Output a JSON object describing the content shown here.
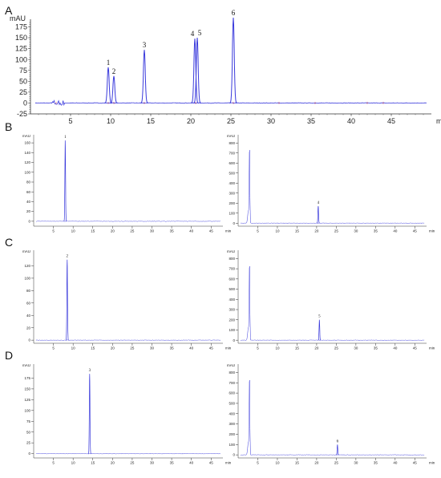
{
  "panel_labels": [
    "A",
    "B",
    "C",
    "D"
  ],
  "colors": {
    "trace": "#3b3bdc",
    "baseline_noise": "#cc3344",
    "axis": "#333333"
  },
  "chart_data": [
    {
      "id": "A",
      "type": "line",
      "ylabel": "mAU",
      "xlabel": "min",
      "xlim": [
        0,
        50
      ],
      "ylim": [
        -25,
        185
      ],
      "xticks": [
        5,
        10,
        15,
        20,
        25,
        30,
        35,
        40,
        45
      ],
      "yticks": [
        -25,
        0,
        25,
        50,
        75,
        100,
        125,
        150,
        175
      ],
      "peaks": [
        {
          "label": "1",
          "x": 9.7,
          "y": 82
        },
        {
          "label": "2",
          "x": 10.4,
          "y": 62
        },
        {
          "label": "3",
          "x": 14.2,
          "y": 122
        },
        {
          "label": "4",
          "x": 20.5,
          "y": 148
        },
        {
          "label": "5",
          "x": 20.8,
          "y": 150
        },
        {
          "label": "6",
          "x": 25.3,
          "y": 196
        }
      ]
    },
    {
      "id": "B-left",
      "type": "line",
      "ylabel": "mAU",
      "xlabel": "min",
      "xlim": [
        0,
        48
      ],
      "ylim": [
        -10,
        170
      ],
      "xticks": [
        5,
        10,
        15,
        20,
        25,
        30,
        35,
        40,
        45
      ],
      "yticks": [
        0,
        20,
        40,
        60,
        80,
        100,
        120,
        140,
        160
      ],
      "peaks": [
        {
          "label": "1",
          "x": 8.0,
          "y": 165
        }
      ]
    },
    {
      "id": "B-right",
      "type": "line",
      "ylabel": "mAU",
      "xlabel": "min",
      "xlim": [
        0,
        48
      ],
      "ylim": [
        -30,
        850
      ],
      "xticks": [
        5,
        10,
        15,
        20,
        25,
        30,
        35,
        40,
        45
      ],
      "yticks": [
        0,
        100,
        200,
        300,
        400,
        500,
        600,
        700,
        800
      ],
      "peaks": [
        {
          "label": "4",
          "x": 20.4,
          "y": 170
        }
      ]
    },
    {
      "id": "C-left",
      "type": "line",
      "ylabel": "mAU",
      "xlabel": "min",
      "xlim": [
        0,
        48
      ],
      "ylim": [
        -5,
        140
      ],
      "xticks": [
        5,
        10,
        15,
        20,
        25,
        30,
        35,
        40,
        45
      ],
      "yticks": [
        0,
        20,
        40,
        60,
        80,
        100,
        120
      ],
      "peaks": [
        {
          "label": "2",
          "x": 8.5,
          "y": 130
        }
      ]
    },
    {
      "id": "C-right",
      "type": "line",
      "ylabel": "mAU",
      "xlabel": "min",
      "xlim": [
        0,
        48
      ],
      "ylim": [
        -30,
        850
      ],
      "xticks": [
        5,
        10,
        15,
        20,
        25,
        30,
        35,
        40,
        45
      ],
      "yticks": [
        0,
        100,
        200,
        300,
        400,
        500,
        600,
        700,
        800
      ],
      "peaks": [
        {
          "label": "5",
          "x": 20.7,
          "y": 200
        }
      ]
    },
    {
      "id": "D-left",
      "type": "line",
      "ylabel": "mAU",
      "xlabel": "min",
      "xlim": [
        0,
        48
      ],
      "ylim": [
        -10,
        200
      ],
      "xticks": [
        5,
        10,
        15,
        20,
        25,
        30,
        35,
        40,
        45
      ],
      "yticks": [
        0,
        25,
        50,
        75,
        100,
        125,
        150,
        175
      ],
      "peaks": [
        {
          "label": "3",
          "x": 14.2,
          "y": 185
        }
      ]
    },
    {
      "id": "D-right",
      "type": "line",
      "ylabel": "mAU",
      "xlabel": "min",
      "xlim": [
        0,
        48
      ],
      "ylim": [
        -30,
        850
      ],
      "xticks": [
        5,
        10,
        15,
        20,
        25,
        30,
        35,
        40,
        45
      ],
      "yticks": [
        0,
        100,
        200,
        300,
        400,
        500,
        600,
        700,
        800
      ],
      "peaks": [
        {
          "label": "6",
          "x": 25.3,
          "y": 100
        }
      ]
    }
  ]
}
